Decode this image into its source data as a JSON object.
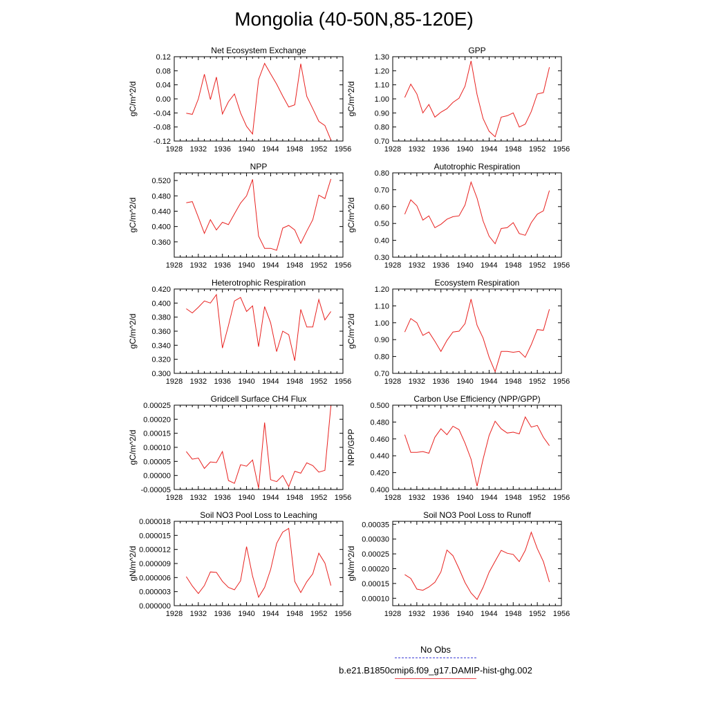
{
  "title": "Mongolia (40-50N,85-120E)",
  "legend": {
    "obs_label": "No Obs",
    "obs_color": "#3b3bd6",
    "model_label": "b.e21.B1850cmip6.f09_g17.DAMIP-hist-ghg.002",
    "model_color": "#e8464a"
  },
  "line_color": "#e8201e",
  "chart_data": [
    {
      "type": "line",
      "title": "Net Ecosystem Exchange",
      "ylabel": "gC/m^2/d",
      "xlim": [
        1928,
        1956
      ],
      "xticks": [
        "1928",
        "1932",
        "1936",
        "1940",
        "1944",
        "1948",
        "1952",
        "1956"
      ],
      "ylim": [
        -0.12,
        0.12
      ],
      "yticks": [
        "-0.12",
        "-0.08",
        "-0.04",
        "0.00",
        "0.04",
        "0.08",
        "0.12"
      ],
      "x": [
        1930,
        1931,
        1932,
        1933,
        1934,
        1935,
        1936,
        1937,
        1938,
        1939,
        1940,
        1941,
        1942,
        1943,
        1944,
        1945,
        1946,
        1947,
        1948,
        1949,
        1950,
        1951,
        1952,
        1953,
        1954
      ],
      "y": [
        -0.041,
        -0.044,
        0.0,
        0.07,
        -0.002,
        0.062,
        -0.043,
        -0.008,
        0.014,
        -0.04,
        -0.078,
        -0.1,
        0.055,
        0.101,
        0.071,
        0.042,
        0.008,
        -0.023,
        -0.017,
        0.1,
        0.007,
        -0.028,
        -0.064,
        -0.076,
        -0.117
      ]
    },
    {
      "type": "line",
      "title": "GPP",
      "ylabel": "gC/m^2/d",
      "xlim": [
        1928,
        1956
      ],
      "xticks": [
        "1928",
        "1932",
        "1936",
        "1940",
        "1944",
        "1948",
        "1952",
        "1956"
      ],
      "ylim": [
        0.7,
        1.3
      ],
      "yticks": [
        "0.70",
        "0.80",
        "0.90",
        "1.00",
        "1.10",
        "1.20",
        "1.30"
      ],
      "x": [
        1930,
        1931,
        1932,
        1933,
        1934,
        1935,
        1936,
        1937,
        1938,
        1939,
        1940,
        1941,
        1942,
        1943,
        1944,
        1945,
        1946,
        1947,
        1948,
        1949,
        1950,
        1951,
        1952,
        1953,
        1954
      ],
      "y": [
        1.01,
        1.105,
        1.035,
        0.9,
        0.96,
        0.87,
        0.905,
        0.93,
        0.975,
        1.005,
        1.09,
        1.27,
        1.03,
        0.86,
        0.77,
        0.73,
        0.87,
        0.88,
        0.9,
        0.8,
        0.82,
        0.91,
        1.035,
        1.045,
        1.225
      ]
    },
    {
      "type": "line",
      "title": "NPP",
      "ylabel": "gC/m^2/d",
      "xlim": [
        1928,
        1956
      ],
      "xticks": [
        "1928",
        "1932",
        "1936",
        "1940",
        "1944",
        "1948",
        "1952",
        "1956"
      ],
      "ylim": [
        0.32,
        0.54
      ],
      "yticks": [
        "0.360",
        "0.400",
        "0.440",
        "0.480",
        "0.520"
      ],
      "x": [
        1930,
        1931,
        1932,
        1933,
        1934,
        1935,
        1936,
        1937,
        1938,
        1939,
        1940,
        1941,
        1942,
        1943,
        1944,
        1945,
        1946,
        1947,
        1948,
        1949,
        1950,
        1951,
        1952,
        1953,
        1954
      ],
      "y": [
        0.462,
        0.465,
        0.424,
        0.382,
        0.418,
        0.391,
        0.411,
        0.405,
        0.433,
        0.461,
        0.48,
        0.523,
        0.375,
        0.343,
        0.343,
        0.338,
        0.396,
        0.403,
        0.391,
        0.356,
        0.388,
        0.418,
        0.482,
        0.473,
        0.524
      ]
    },
    {
      "type": "line",
      "title": "Autotrophic Respiration",
      "ylabel": "gC/m^2/d",
      "xlim": [
        1928,
        1956
      ],
      "xticks": [
        "1928",
        "1932",
        "1936",
        "1940",
        "1944",
        "1948",
        "1952",
        "1956"
      ],
      "ylim": [
        0.3,
        0.8
      ],
      "yticks": [
        "0.30",
        "0.40",
        "0.50",
        "0.60",
        "0.70",
        "0.80"
      ],
      "x": [
        1930,
        1931,
        1932,
        1933,
        1934,
        1935,
        1936,
        1937,
        1938,
        1939,
        1940,
        1941,
        1942,
        1943,
        1944,
        1945,
        1946,
        1947,
        1948,
        1949,
        1950,
        1951,
        1952,
        1953,
        1954
      ],
      "y": [
        0.555,
        0.64,
        0.605,
        0.52,
        0.545,
        0.475,
        0.495,
        0.525,
        0.54,
        0.545,
        0.61,
        0.745,
        0.65,
        0.515,
        0.425,
        0.38,
        0.47,
        0.475,
        0.505,
        0.44,
        0.43,
        0.505,
        0.555,
        0.575,
        0.695
      ]
    },
    {
      "type": "line",
      "title": "Heterotrophic Respiration",
      "ylabel": "gC/m^2/d",
      "xlim": [
        1928,
        1956
      ],
      "xticks": [
        "1928",
        "1932",
        "1936",
        "1940",
        "1944",
        "1948",
        "1952",
        "1956"
      ],
      "ylim": [
        0.3,
        0.42
      ],
      "yticks": [
        "0.300",
        "0.320",
        "0.340",
        "0.360",
        "0.380",
        "0.400",
        "0.420"
      ],
      "x": [
        1930,
        1931,
        1932,
        1933,
        1934,
        1935,
        1936,
        1937,
        1938,
        1939,
        1940,
        1941,
        1942,
        1943,
        1944,
        1945,
        1946,
        1947,
        1948,
        1949,
        1950,
        1951,
        1952,
        1953,
        1954
      ],
      "y": [
        0.392,
        0.386,
        0.394,
        0.403,
        0.4,
        0.412,
        0.336,
        0.368,
        0.403,
        0.408,
        0.388,
        0.396,
        0.338,
        0.395,
        0.372,
        0.331,
        0.36,
        0.355,
        0.318,
        0.391,
        0.366,
        0.366,
        0.405,
        0.376,
        0.388
      ]
    },
    {
      "type": "line",
      "title": "Ecosystem Respiration",
      "ylabel": "gC/m^2/d",
      "xlim": [
        1928,
        1956
      ],
      "xticks": [
        "1928",
        "1932",
        "1936",
        "1940",
        "1944",
        "1948",
        "1952",
        "1956"
      ],
      "ylim": [
        0.7,
        1.2
      ],
      "yticks": [
        "0.70",
        "0.80",
        "0.90",
        "1.00",
        "1.10",
        "1.20"
      ],
      "x": [
        1930,
        1931,
        1932,
        1933,
        1934,
        1935,
        1936,
        1937,
        1938,
        1939,
        1940,
        1941,
        1942,
        1943,
        1944,
        1945,
        1946,
        1947,
        1948,
        1949,
        1950,
        1951,
        1952,
        1953,
        1954
      ],
      "y": [
        0.945,
        1.025,
        1.0,
        0.925,
        0.945,
        0.89,
        0.83,
        0.895,
        0.945,
        0.95,
        0.995,
        1.14,
        0.985,
        0.91,
        0.795,
        0.71,
        0.83,
        0.83,
        0.825,
        0.83,
        0.795,
        0.87,
        0.96,
        0.955,
        1.08
      ]
    },
    {
      "type": "line",
      "title": "Gridcell Surface CH4 Flux",
      "ylabel": "gC/m^2/d",
      "xlim": [
        1928,
        1956
      ],
      "xticks": [
        "1928",
        "1932",
        "1936",
        "1940",
        "1944",
        "1948",
        "1952",
        "1956"
      ],
      "ylim": [
        -5e-05,
        0.00025
      ],
      "yticks": [
        "-0.00005",
        "0.00000",
        "0.00005",
        "0.00010",
        "0.00015",
        "0.00020",
        "0.00025"
      ],
      "x": [
        1930,
        1931,
        1932,
        1933,
        1934,
        1935,
        1936,
        1937,
        1938,
        1939,
        1940,
        1941,
        1942,
        1943,
        1944,
        1945,
        1946,
        1947,
        1948,
        1949,
        1950,
        1951,
        1952,
        1953,
        1954
      ],
      "y": [
        8.5e-05,
        5.8e-05,
        6.2e-05,
        2.5e-05,
        4.8e-05,
        4.6e-05,
        8.5e-05,
        -1.8e-05,
        -2.8e-05,
        3.8e-05,
        3.3e-05,
        5.5e-05,
        -4.5e-05,
        0.000188,
        -1.5e-05,
        -2.2e-05,
        0.0,
        -4e-05,
        1.5e-05,
        8e-06,
        4.5e-05,
        3.5e-05,
        1.2e-05,
        1.8e-05,
        0.000248
      ]
    },
    {
      "type": "line",
      "title": "Carbon Use Efficiency (NPP/GPP)",
      "ylabel": "NPP/GPP",
      "xlim": [
        1928,
        1956
      ],
      "xticks": [
        "1928",
        "1932",
        "1936",
        "1940",
        "1944",
        "1948",
        "1952",
        "1956"
      ],
      "ylim": [
        0.4,
        0.5
      ],
      "yticks": [
        "0.400",
        "0.420",
        "0.440",
        "0.460",
        "0.480",
        "0.500"
      ],
      "x": [
        1930,
        1931,
        1932,
        1933,
        1934,
        1935,
        1936,
        1937,
        1938,
        1939,
        1940,
        1941,
        1942,
        1943,
        1944,
        1945,
        1946,
        1947,
        1948,
        1949,
        1950,
        1951,
        1952,
        1953,
        1954
      ],
      "y": [
        0.465,
        0.444,
        0.444,
        0.445,
        0.443,
        0.462,
        0.472,
        0.465,
        0.475,
        0.471,
        0.455,
        0.436,
        0.404,
        0.436,
        0.464,
        0.481,
        0.472,
        0.467,
        0.468,
        0.466,
        0.486,
        0.474,
        0.476,
        0.462,
        0.452
      ]
    },
    {
      "type": "line",
      "title": "Soil NO3 Pool Loss to Leaching",
      "ylabel": "gN/m^2/d",
      "xlim": [
        1928,
        1956
      ],
      "xticks": [
        "1928",
        "1932",
        "1936",
        "1940",
        "1944",
        "1948",
        "1952",
        "1956"
      ],
      "ylim": [
        0.0,
        1.8e-05
      ],
      "yticks": [
        "0.000000",
        "0.000003",
        "0.000006",
        "0.000009",
        "0.000012",
        "0.000015",
        "0.000018"
      ],
      "x": [
        1930,
        1931,
        1932,
        1933,
        1934,
        1935,
        1936,
        1937,
        1938,
        1939,
        1940,
        1941,
        1942,
        1943,
        1944,
        1945,
        1946,
        1947,
        1948,
        1949,
        1950,
        1951,
        1952,
        1953,
        1954
      ],
      "y": [
        6.2e-06,
        4.2e-06,
        2.6e-06,
        4.3e-06,
        7.2e-06,
        7.1e-06,
        5.2e-06,
        3.9e-06,
        3.4e-06,
        5.3e-06,
        1.26e-05,
        6.3e-06,
        1.8e-06,
        3.9e-06,
        7.7e-06,
        1.33e-05,
        1.57e-05,
        1.65e-05,
        5.2e-06,
        2.8e-06,
        5.1e-06,
        6.8e-06,
        1.12e-05,
        9.1e-06,
        4.3e-06
      ]
    },
    {
      "type": "line",
      "title": "Soil NO3 Pool Loss to Runoff",
      "ylabel": "gN/m^2/d",
      "xlim": [
        1928,
        1956
      ],
      "xticks": [
        "1928",
        "1932",
        "1936",
        "1940",
        "1944",
        "1948",
        "1952",
        "1956"
      ],
      "ylim": [
        7.5e-05,
        0.00036
      ],
      "yticks": [
        "0.00010",
        "0.00015",
        "0.00020",
        "0.00025",
        "0.00030",
        "0.00035"
      ],
      "x": [
        1930,
        1931,
        1932,
        1933,
        1934,
        1935,
        1936,
        1937,
        1938,
        1939,
        1940,
        1941,
        1942,
        1943,
        1944,
        1945,
        1946,
        1947,
        1948,
        1949,
        1950,
        1951,
        1952,
        1953,
        1954
      ],
      "y": [
        0.00018,
        0.000167,
        0.000131,
        0.000127,
        0.000138,
        0.000154,
        0.000189,
        0.000263,
        0.000244,
        0.0002,
        0.000153,
        0.000118,
        9.6e-05,
        0.000137,
        0.000188,
        0.000225,
        0.000262,
        0.000252,
        0.000248,
        0.000224,
        0.000262,
        0.000323,
        0.000268,
        0.000224,
        0.000155
      ]
    }
  ]
}
